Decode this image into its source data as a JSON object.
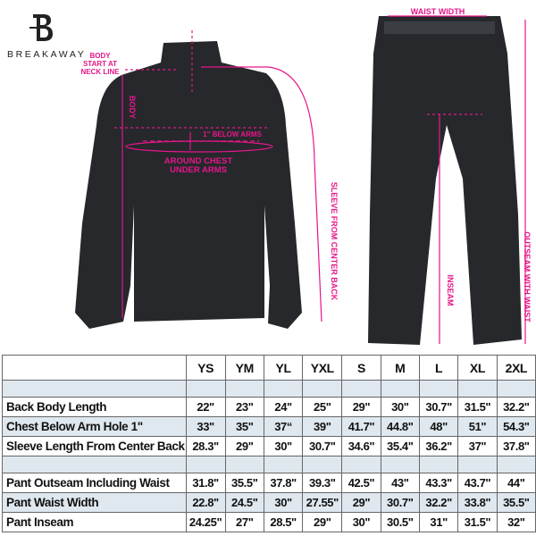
{
  "brand": {
    "name": "BREAKAWAY",
    "logo_letter": "B"
  },
  "annotations": {
    "waist_width": "WAIST WIDTH",
    "body_start": "BODY START AT NECK LINE",
    "body": "BODY",
    "below_arms": "1\" BELOW ARMS",
    "around_chest": "AROUND CHEST UNDER ARMS",
    "sleeve": "SLEEVE FROM CENTER BACK",
    "inseam": "INSEAM",
    "outseam": "OUTSEAM WITH WAIST"
  },
  "colors": {
    "accent": "#e6168a",
    "garment": "#26282c",
    "row_tint": "#dfe8ef"
  },
  "table": {
    "sizes": [
      "YS",
      "YM",
      "YL",
      "YXL",
      "S",
      "M",
      "L",
      "XL",
      "2XL"
    ],
    "jacket_rows": [
      {
        "label": "Back Body Length",
        "values": [
          "22\"",
          "23\"",
          "24\"",
          "25\"",
          "29\"",
          "30\"",
          "30.7\"",
          "31.5\"",
          "32.2\""
        ]
      },
      {
        "label": "Chest Below Arm Hole 1\"",
        "values": [
          "33\"",
          "35\"",
          "37“",
          "39\"",
          "41.7\"",
          "44.8\"",
          "48\"",
          "51\"",
          "54.3\""
        ]
      },
      {
        "label": "Sleeve Length From Center Back",
        "values": [
          "28.3\"",
          "29\"",
          "30\"",
          "30.7\"",
          "34.6\"",
          "35.4\"",
          "36.2\"",
          "37\"",
          "37.8\""
        ]
      }
    ],
    "pant_rows": [
      {
        "label": "Pant Outseam Including Waist",
        "values": [
          "31.8\"",
          "35.5\"",
          "37.8\"",
          "39.3\"",
          "42.5\"",
          "43\"",
          "43.3\"",
          "43.7\"",
          "44\""
        ]
      },
      {
        "label": "Pant Waist Width",
        "values": [
          "22.8\"",
          "24.5\"",
          "30\"",
          "27.55\"",
          "29\"",
          "30.7\"",
          "32.2\"",
          "33.8\"",
          "35.5\""
        ]
      },
      {
        "label": "Pant Inseam",
        "values": [
          "24.25\"",
          "27\"",
          "28.5\"",
          "29\"",
          "30\"",
          "30.5\"",
          "31\"",
          "31.5\"",
          "32\""
        ]
      }
    ]
  }
}
